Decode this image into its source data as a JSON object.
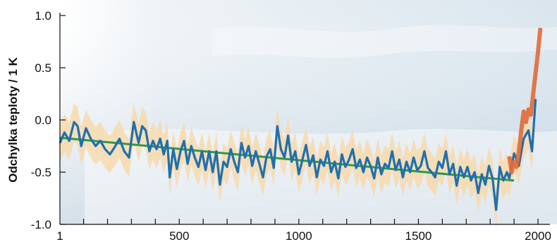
{
  "chart_data": {
    "type": "line",
    "title": "",
    "xlabel": "",
    "ylabel": "Odchylka teploty / 1 K",
    "xlim": [
      1,
      2050
    ],
    "ylim": [
      -1.0,
      1.0
    ],
    "xticks": [
      1,
      500,
      1000,
      1500,
      2000
    ],
    "xtick_labels": [
      "1",
      "500",
      "1000",
      "1500",
      "2000"
    ],
    "yticks": [
      1.0,
      0.5,
      0.0,
      -0.5,
      -1.0
    ],
    "ytick_labels": [
      "1.0",
      "0.5",
      "0.0",
      "-0.5",
      "-1.0"
    ],
    "minor_x_every": 100,
    "grid": false,
    "legend": "none",
    "colors": {
      "reconstruction": "#1f6fae",
      "uncertainty": "#f7d9ad",
      "trend": "#2e9a47",
      "instrumental": "#e06a3a",
      "background_ice": "#dfe9f0"
    },
    "series": [
      {
        "role": "reconstruction",
        "x": [
          1,
          20,
          40,
          60,
          75,
          90,
          110,
          130,
          150,
          170,
          190,
          210,
          230,
          250,
          270,
          290,
          310,
          330,
          345,
          360,
          375,
          390,
          405,
          420,
          435,
          450,
          460,
          475,
          490,
          505,
          520,
          535,
          550,
          565,
          580,
          595,
          610,
          625,
          640,
          655,
          670,
          685,
          700,
          715,
          730,
          745,
          760,
          775,
          790,
          805,
          820,
          835,
          850,
          865,
          880,
          895,
          910,
          925,
          940,
          955,
          970,
          985,
          1000,
          1015,
          1030,
          1045,
          1060,
          1075,
          1090,
          1105,
          1120,
          1135,
          1150,
          1165,
          1180,
          1195,
          1210,
          1225,
          1240,
          1255,
          1270,
          1285,
          1300,
          1315,
          1330,
          1345,
          1360,
          1375,
          1390,
          1405,
          1420,
          1435,
          1450,
          1465,
          1480,
          1495,
          1510,
          1525,
          1540,
          1555,
          1570,
          1585,
          1600,
          1615,
          1630,
          1645,
          1660,
          1675,
          1690,
          1705,
          1720,
          1735,
          1750,
          1765,
          1780,
          1795,
          1810,
          1825,
          1840,
          1855,
          1870,
          1880,
          1900,
          1920,
          1940,
          1960,
          1975,
          1990
        ],
        "y": [
          -0.22,
          -0.12,
          -0.2,
          -0.02,
          -0.06,
          -0.25,
          -0.08,
          -0.18,
          -0.25,
          -0.2,
          -0.28,
          -0.33,
          -0.26,
          -0.18,
          -0.3,
          -0.36,
          -0.02,
          -0.22,
          -0.06,
          -0.1,
          -0.3,
          -0.2,
          -0.28,
          -0.18,
          -0.33,
          -0.2,
          -0.55,
          -0.28,
          -0.47,
          -0.3,
          -0.2,
          -0.42,
          -0.25,
          -0.36,
          -0.45,
          -0.3,
          -0.48,
          -0.3,
          -0.5,
          -0.3,
          -0.62,
          -0.4,
          -0.45,
          -0.28,
          -0.4,
          -0.5,
          -0.22,
          -0.36,
          -0.25,
          -0.44,
          -0.3,
          -0.42,
          -0.55,
          -0.35,
          -0.28,
          -0.46,
          -0.06,
          -0.28,
          -0.36,
          -0.15,
          -0.4,
          -0.3,
          -0.52,
          -0.38,
          -0.24,
          -0.44,
          -0.34,
          -0.55,
          -0.38,
          -0.44,
          -0.3,
          -0.5,
          -0.4,
          -0.56,
          -0.33,
          -0.45,
          -0.38,
          -0.28,
          -0.46,
          -0.38,
          -0.5,
          -0.36,
          -0.44,
          -0.56,
          -0.36,
          -0.52,
          -0.42,
          -0.46,
          -0.3,
          -0.48,
          -0.38,
          -0.55,
          -0.4,
          -0.5,
          -0.36,
          -0.48,
          -0.44,
          -0.3,
          -0.46,
          -0.5,
          -0.55,
          -0.4,
          -0.46,
          -0.3,
          -0.52,
          -0.42,
          -0.63,
          -0.45,
          -0.55,
          -0.45,
          -0.58,
          -0.5,
          -0.7,
          -0.52,
          -0.62,
          -0.44,
          -0.56,
          -0.86,
          -0.45,
          -0.58,
          -0.5,
          -0.56,
          -0.32,
          -0.44,
          -0.18,
          -0.1,
          -0.3,
          0.2
        ]
      },
      {
        "role": "trend",
        "x": [
          1,
          1900
        ],
        "y": [
          -0.17,
          -0.58
        ]
      },
      {
        "role": "instrumental",
        "x": [
          1880,
          1890,
          1900,
          1910,
          1920,
          1930,
          1940,
          1950,
          1960,
          1970,
          1980,
          1990,
          2000,
          2010
        ],
        "y": [
          -0.35,
          -0.5,
          -0.4,
          -0.45,
          -0.3,
          -0.1,
          0.08,
          -0.02,
          0.1,
          0.05,
          0.25,
          0.45,
          0.65,
          0.88
        ]
      }
    ],
    "uncertainty_band": {
      "half_width": 0.18
    }
  }
}
